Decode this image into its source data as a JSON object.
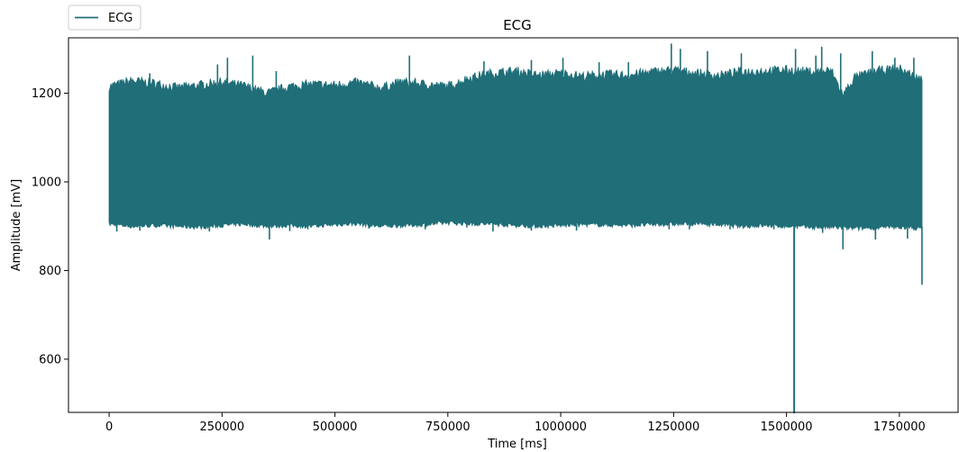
{
  "chart_data": {
    "type": "line",
    "title": "ECG",
    "xlabel": "Time [ms]",
    "ylabel": "Amplitude [mV]",
    "xlim": [
      -90000,
      1880000
    ],
    "ylim": [
      480,
      1325
    ],
    "xticks": [
      0,
      250000,
      500000,
      750000,
      1000000,
      1250000,
      1500000,
      1750000
    ],
    "xtick_labels": [
      "0",
      "250000",
      "500000",
      "750000",
      "1000000",
      "1250000",
      "1500000",
      "1750000"
    ],
    "yticks": [
      600,
      800,
      1000,
      1200
    ],
    "ytick_labels": [
      "600",
      "800",
      "1000",
      "1200"
    ],
    "grid": false,
    "legend": {
      "position": "top-left",
      "entries": [
        "ECG"
      ]
    },
    "series": [
      {
        "name": "ECG",
        "color": "#206e78",
        "x_range": [
          0,
          1800000
        ],
        "band_upper": [
          [
            0,
            1215
          ],
          [
            50000,
            1228
          ],
          [
            100000,
            1222
          ],
          [
            150000,
            1212
          ],
          [
            200000,
            1218
          ],
          [
            250000,
            1225
          ],
          [
            300000,
            1216
          ],
          [
            350000,
            1200
          ],
          [
            400000,
            1215
          ],
          [
            450000,
            1220
          ],
          [
            500000,
            1218
          ],
          [
            550000,
            1224
          ],
          [
            600000,
            1212
          ],
          [
            650000,
            1225
          ],
          [
            700000,
            1220
          ],
          [
            750000,
            1215
          ],
          [
            800000,
            1235
          ],
          [
            850000,
            1245
          ],
          [
            900000,
            1250
          ],
          [
            950000,
            1240
          ],
          [
            1000000,
            1245
          ],
          [
            1050000,
            1238
          ],
          [
            1100000,
            1242
          ],
          [
            1150000,
            1240
          ],
          [
            1200000,
            1248
          ],
          [
            1250000,
            1252
          ],
          [
            1300000,
            1245
          ],
          [
            1350000,
            1240
          ],
          [
            1400000,
            1248
          ],
          [
            1450000,
            1250
          ],
          [
            1500000,
            1252
          ],
          [
            1550000,
            1248
          ],
          [
            1600000,
            1250
          ],
          [
            1625000,
            1195
          ],
          [
            1650000,
            1235
          ],
          [
            1700000,
            1250
          ],
          [
            1750000,
            1255
          ],
          [
            1800000,
            1230
          ]
        ],
        "band_lower": [
          [
            0,
            905
          ],
          [
            50000,
            900
          ],
          [
            100000,
            902
          ],
          [
            150000,
            900
          ],
          [
            200000,
            898
          ],
          [
            250000,
            902
          ],
          [
            300000,
            905
          ],
          [
            350000,
            900
          ],
          [
            400000,
            902
          ],
          [
            450000,
            900
          ],
          [
            500000,
            904
          ],
          [
            550000,
            906
          ],
          [
            600000,
            900
          ],
          [
            650000,
            902
          ],
          [
            700000,
            904
          ],
          [
            750000,
            908
          ],
          [
            800000,
            906
          ],
          [
            850000,
            905
          ],
          [
            900000,
            902
          ],
          [
            950000,
            900
          ],
          [
            1000000,
            902
          ],
          [
            1050000,
            904
          ],
          [
            1100000,
            903
          ],
          [
            1150000,
            902
          ],
          [
            1200000,
            904
          ],
          [
            1250000,
            905
          ],
          [
            1300000,
            906
          ],
          [
            1350000,
            904
          ],
          [
            1400000,
            900
          ],
          [
            1450000,
            902
          ],
          [
            1500000,
            900
          ],
          [
            1550000,
            898
          ],
          [
            1600000,
            898
          ],
          [
            1650000,
            895
          ],
          [
            1700000,
            897
          ],
          [
            1750000,
            898
          ],
          [
            1800000,
            895
          ]
        ],
        "peaks_high": [
          [
            90000,
            1245
          ],
          [
            240000,
            1265
          ],
          [
            262000,
            1280
          ],
          [
            318000,
            1285
          ],
          [
            370000,
            1250
          ],
          [
            665000,
            1285
          ],
          [
            830000,
            1272
          ],
          [
            935000,
            1275
          ],
          [
            1005000,
            1280
          ],
          [
            1085000,
            1270
          ],
          [
            1150000,
            1270
          ],
          [
            1245000,
            1312
          ],
          [
            1265000,
            1300
          ],
          [
            1325000,
            1295
          ],
          [
            1400000,
            1290
          ],
          [
            1520000,
            1300
          ],
          [
            1565000,
            1285
          ],
          [
            1578000,
            1305
          ],
          [
            1620000,
            1290
          ],
          [
            1690000,
            1295
          ],
          [
            1740000,
            1280
          ],
          [
            1782000,
            1280
          ]
        ],
        "peaks_low": [
          [
            17000,
            888
          ],
          [
            68000,
            890
          ],
          [
            222000,
            888
          ],
          [
            355000,
            870
          ],
          [
            400000,
            889
          ],
          [
            440000,
            893
          ],
          [
            575000,
            895
          ],
          [
            700000,
            893
          ],
          [
            792000,
            897
          ],
          [
            850000,
            888
          ],
          [
            935000,
            890
          ],
          [
            1035000,
            890
          ],
          [
            1240000,
            893
          ],
          [
            1285000,
            893
          ],
          [
            1375000,
            893
          ],
          [
            1472000,
            893
          ],
          [
            1580000,
            885
          ],
          [
            1625000,
            848
          ],
          [
            1697000,
            870
          ],
          [
            1768000,
            872
          ],
          [
            1800000,
            768
          ]
        ],
        "spike": [
          1517000,
          478
        ]
      }
    ]
  }
}
